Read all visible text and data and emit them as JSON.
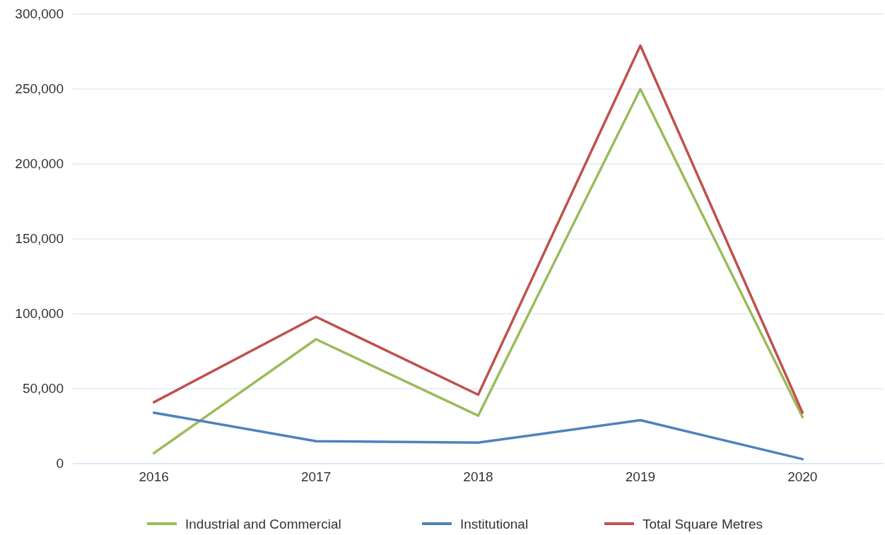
{
  "chart_data": {
    "type": "line",
    "categories": [
      "2016",
      "2017",
      "2018",
      "2019",
      "2020"
    ],
    "series": [
      {
        "name": "Industrial and Commercial",
        "color": "#9bbb59",
        "values": [
          7000,
          83000,
          32000,
          250000,
          31000
        ]
      },
      {
        "name": "Institutional",
        "color": "#4f81bd",
        "values": [
          34000,
          15000,
          14000,
          29000,
          3000
        ]
      },
      {
        "name": "Total Square Metres",
        "color": "#c0504d",
        "values": [
          41000,
          98000,
          46000,
          279000,
          34000
        ]
      }
    ],
    "ylim": [
      0,
      300000
    ],
    "yticks": [
      {
        "value": 0,
        "label": "0"
      },
      {
        "value": 50000,
        "label": "50,000"
      },
      {
        "value": 100000,
        "label": "100,000"
      },
      {
        "value": 150000,
        "label": "150,000"
      },
      {
        "value": 200000,
        "label": "200,000"
      },
      {
        "value": 250000,
        "label": "250,000"
      },
      {
        "value": 300000,
        "label": "300,000"
      }
    ],
    "grid": "y",
    "legend": "bottom",
    "marker": "none",
    "line_style": "solid"
  }
}
